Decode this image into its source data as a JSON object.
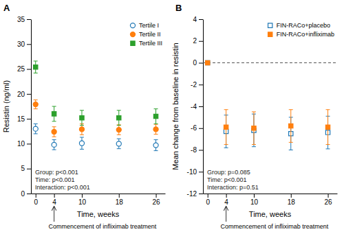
{
  "chart_data": [
    {
      "type": "scatter",
      "title": "A",
      "xlabel": "Time, weeks",
      "ylabel": "Resistin (ng/ml)",
      "xlim": [
        -1,
        28
      ],
      "ylim": [
        0,
        35
      ],
      "xticks": [
        0,
        4,
        10,
        18,
        26
      ],
      "yticks": [
        0,
        5,
        10,
        15,
        20,
        25,
        30,
        35
      ],
      "grid": false,
      "legend": "top-right",
      "x": [
        0,
        4,
        10,
        18,
        26
      ],
      "series": [
        {
          "name": "Tertile I",
          "marker": "open-circle",
          "values": [
            13.0,
            9.8,
            10.1,
            10.0,
            9.7
          ],
          "err_lo": [
            1.0,
            1.0,
            1.2,
            1.0,
            1.1
          ],
          "err_hi": [
            1.0,
            1.0,
            1.2,
            1.0,
            1.1
          ]
        },
        {
          "name": "Tertile II",
          "marker": "circle",
          "values": [
            17.9,
            12.4,
            12.9,
            12.8,
            12.9
          ],
          "err_lo": [
            0.9,
            1.0,
            1.1,
            1.0,
            1.0
          ],
          "err_hi": [
            0.9,
            1.0,
            1.1,
            1.0,
            1.0
          ]
        },
        {
          "name": "Tertile III",
          "marker": "square",
          "values": [
            25.4,
            16.0,
            15.2,
            15.2,
            15.5
          ],
          "err_lo": [
            1.2,
            1.5,
            1.5,
            1.5,
            1.5
          ],
          "err_hi": [
            1.2,
            1.5,
            1.5,
            1.5,
            1.5
          ]
        }
      ],
      "annotation": [
        "Group: p<0.001",
        "Time: p<0.001",
        "Interaction: p<0.001"
      ],
      "arrow_x": 4,
      "arrow_label": "Commencement of infliximab treatment"
    },
    {
      "type": "scatter",
      "title": "B",
      "xlabel": "Time, weeks",
      "ylabel": "Mean change from baseline in resistin",
      "xlim": [
        -1,
        28
      ],
      "ylim": [
        -12,
        4
      ],
      "xticks": [
        0,
        4,
        10,
        18,
        26
      ],
      "yticks": [
        -12,
        -10,
        -8,
        -6,
        -4,
        -2,
        0,
        2,
        4
      ],
      "grid": false,
      "legend": "top-right",
      "x": [
        0,
        4,
        10,
        18,
        26
      ],
      "hline": 0,
      "series": [
        {
          "name": "FIN-RACo+placebo",
          "marker": "open-square",
          "values": [
            0.0,
            -6.3,
            -6.2,
            -6.5,
            -6.4
          ],
          "err_lo": [
            0.0,
            1.5,
            1.5,
            1.5,
            1.5
          ],
          "err_hi": [
            0.0,
            1.5,
            1.5,
            1.5,
            1.5
          ]
        },
        {
          "name": "FIN-RACo+infliximab",
          "marker": "square",
          "values": [
            0.0,
            -5.9,
            -6.0,
            -5.8,
            -5.9
          ],
          "err_lo": [
            0.0,
            1.6,
            1.5,
            1.5,
            1.6
          ],
          "err_hi": [
            0.0,
            1.6,
            1.5,
            1.5,
            1.6
          ]
        }
      ],
      "annotation": [
        "Group: p=0.085",
        "Time: p<0.001",
        "Interaction: p=0.51"
      ],
      "arrow_x": 4,
      "arrow_label": "Commencement of infliximab treatment"
    }
  ]
}
